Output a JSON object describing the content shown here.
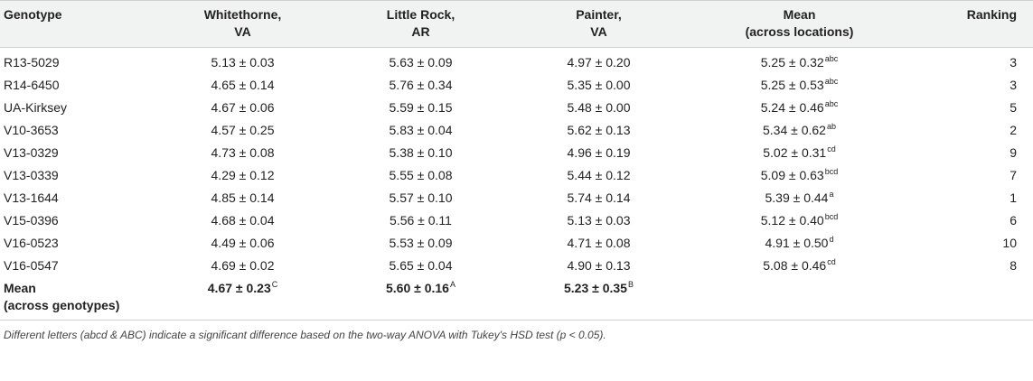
{
  "header": {
    "genotype": "Genotype",
    "whitethorne": [
      "Whitethorne,",
      "VA"
    ],
    "little_rock": [
      "Little Rock,",
      "AR"
    ],
    "painter": [
      "Painter,",
      "VA"
    ],
    "mean": [
      "Mean",
      "(across locations)"
    ],
    "ranking": "Ranking"
  },
  "rows": [
    {
      "genotype": "R13-5029",
      "whitethorne": "5.13 ± 0.03",
      "little_rock": "5.63 ± 0.09",
      "painter": "4.97 ± 0.20",
      "mean": "5.25 ± 0.32",
      "mean_sup": "abc",
      "ranking": "3"
    },
    {
      "genotype": "R14-6450",
      "whitethorne": "4.65 ± 0.14",
      "little_rock": "5.76 ± 0.34",
      "painter": "5.35 ± 0.00",
      "mean": "5.25 ± 0.53",
      "mean_sup": "abc",
      "ranking": "3"
    },
    {
      "genotype": "UA-Kirksey",
      "whitethorne": "4.67 ± 0.06",
      "little_rock": "5.59 ± 0.15",
      "painter": "5.48 ± 0.00",
      "mean": "5.24 ± 0.46",
      "mean_sup": "abc",
      "ranking": "5"
    },
    {
      "genotype": "V10-3653",
      "whitethorne": "4.57 ± 0.25",
      "little_rock": "5.83 ± 0.04",
      "painter": "5.62 ± 0.13",
      "mean": "5.34 ± 0.62",
      "mean_sup": "ab",
      "ranking": "2"
    },
    {
      "genotype": "V13-0329",
      "whitethorne": "4.73 ± 0.08",
      "little_rock": "5.38 ± 0.10",
      "painter": "4.96 ± 0.19",
      "mean": "5.02 ± 0.31",
      "mean_sup": "cd",
      "ranking": "9"
    },
    {
      "genotype": "V13-0339",
      "whitethorne": "4.29 ± 0.12",
      "little_rock": "5.55 ± 0.08",
      "painter": "5.44 ± 0.12",
      "mean": "5.09 ± 0.63",
      "mean_sup": "bcd",
      "ranking": "7"
    },
    {
      "genotype": "V13-1644",
      "whitethorne": "4.85 ± 0.14",
      "little_rock": "5.57 ± 0.10",
      "painter": "5.74 ± 0.14",
      "mean": "5.39 ± 0.44",
      "mean_sup": "a",
      "ranking": "1"
    },
    {
      "genotype": "V15-0396",
      "whitethorne": "4.68 ± 0.04",
      "little_rock": "5.56 ± 0.11",
      "painter": "5.13 ± 0.03",
      "mean": "5.12 ± 0.40",
      "mean_sup": "bcd",
      "ranking": "6"
    },
    {
      "genotype": "V16-0523",
      "whitethorne": "4.49 ± 0.06",
      "little_rock": "5.53 ± 0.09",
      "painter": "4.71 ± 0.08",
      "mean": "4.91 ± 0.50",
      "mean_sup": "d",
      "ranking": "10"
    },
    {
      "genotype": "V16-0547",
      "whitethorne": "4.69 ± 0.02",
      "little_rock": "5.65 ± 0.04",
      "painter": "4.90 ± 0.13",
      "mean": "5.08 ± 0.46",
      "mean_sup": "cd",
      "ranking": "8"
    }
  ],
  "mean_row": {
    "label": [
      "Mean",
      "(across genotypes)"
    ],
    "whitethorne": "4.67 ± 0.23",
    "whitethorne_sup": "C",
    "little_rock": "5.60 ± 0.16",
    "little_rock_sup": "A",
    "painter": "5.23 ± 0.35",
    "painter_sup": "B"
  },
  "footnote": "Different letters (abcd & ABC) indicate a significant difference based on the two-way ANOVA with Tukey's HSD test (p < 0.05)."
}
